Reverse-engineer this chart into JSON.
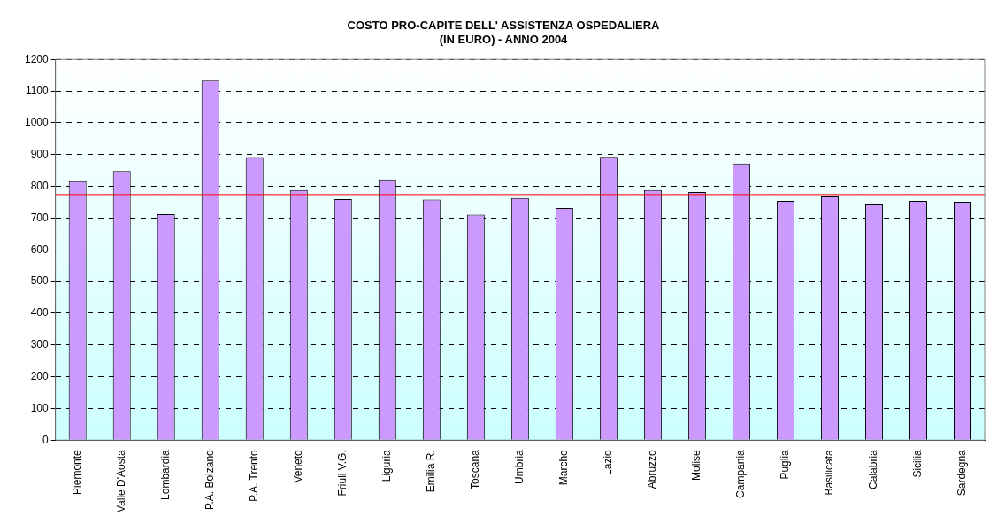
{
  "chart_data": {
    "type": "bar",
    "title": "COSTO PRO-CAPITE DELL' ASSISTENZA OSPEDALIERA\n(IN EURO) - ANNO 2004",
    "categories": [
      "Piemonte",
      "Valle D'Aosta",
      "Lombardia",
      "P.A. Bolzano",
      "P.A. Trento",
      "Veneto",
      "Friuli V.G.",
      "Liguria",
      "Emilia R.",
      "Toscana",
      "Umbria",
      "Marche",
      "Lazio",
      "Abruzzo",
      "Molise",
      "Campania",
      "Puglia",
      "Basilicata",
      "Calabria",
      "Sicilia",
      "Sardegna"
    ],
    "values": [
      816,
      848,
      712,
      1136,
      892,
      788,
      760,
      822,
      758,
      711,
      763,
      732,
      893,
      788,
      782,
      872,
      754,
      768,
      743,
      754,
      751
    ],
    "color": "#cc99ff",
    "ylim": [
      0,
      1200
    ],
    "yticks": [
      0,
      100,
      200,
      300,
      400,
      500,
      600,
      700,
      800,
      900,
      1000,
      1100,
      1200
    ],
    "grid": "y",
    "line_style": "dashed",
    "ref_lines": [
      {
        "axis": "y",
        "value": 774,
        "color": "#ff0000"
      }
    ]
  }
}
